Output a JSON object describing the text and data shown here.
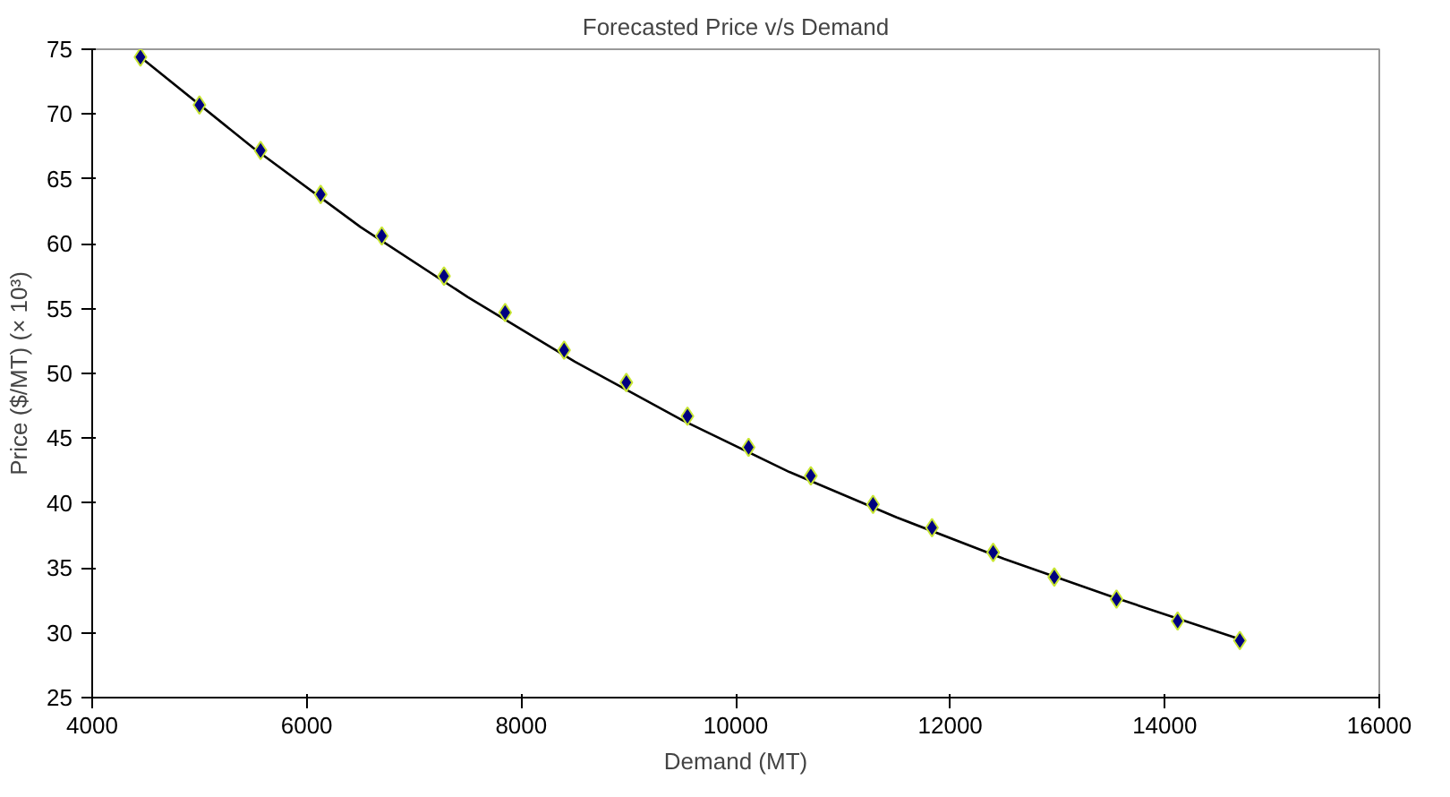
{
  "chart_data": {
    "type": "scatter",
    "title": "Forecasted Price v/s Demand",
    "xlabel": "Demand (MT)",
    "ylabel": "Price ($/MT) (× 10³)",
    "xlim": [
      4000,
      16000
    ],
    "xticks": [
      4000,
      6000,
      8000,
      10000,
      12000,
      14000,
      16000
    ],
    "ylim": [
      25,
      75
    ],
    "yticks": [
      25,
      30,
      35,
      40,
      45,
      50,
      55,
      60,
      65,
      70,
      75
    ],
    "grid": false,
    "marker": "diamond",
    "series": [
      {
        "type": "line",
        "color": "#000000",
        "line_style": "solid",
        "marker": "none",
        "x": [
          4450,
          5500,
          6500,
          7500,
          8500,
          9500,
          10500,
          11500,
          12500,
          13500,
          14700
        ],
        "values": [
          74.4,
          67.4,
          61.3,
          55.9,
          50.9,
          46.4,
          42.4,
          38.9,
          35.7,
          32.8,
          29.5
        ]
      },
      {
        "color": "#000080",
        "x": [
          4450,
          5000,
          5570,
          6130,
          6700,
          7280,
          7850,
          8400,
          8980,
          9550,
          10120,
          10700,
          11280,
          11830,
          12400,
          12970,
          13550,
          14120,
          14700
        ],
        "values": [
          74.4,
          70.7,
          67.2,
          63.8,
          60.6,
          57.5,
          54.7,
          51.8,
          49.3,
          46.7,
          44.3,
          42.1,
          39.9,
          38.1,
          36.2,
          34.3,
          32.6,
          30.9,
          29.4
        ]
      }
    ]
  }
}
